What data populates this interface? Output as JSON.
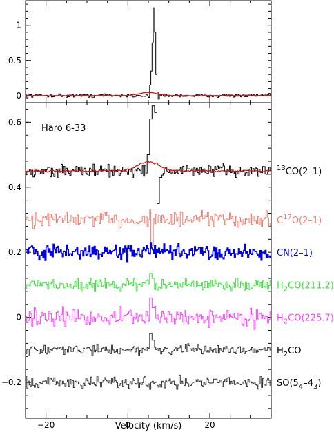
{
  "chart_data": [
    {
      "type": "line",
      "panel": "top",
      "ylim": [
        -0.1,
        1.35
      ],
      "xlim": [
        -25,
        35
      ],
      "yticks": [
        0,
        0.5,
        1
      ],
      "ytick_labels": [
        "0",
        "0.5",
        "1"
      ],
      "series": [
        {
          "color": "#000000",
          "style": "histogram",
          "noise": 0.012,
          "baseline": 0.0,
          "peaks": [
            [
              5.3,
              0.15
            ],
            [
              5.6,
              0.35
            ],
            [
              5.9,
              0.75
            ],
            [
              6.2,
              1.25
            ],
            [
              6.5,
              0.9
            ],
            [
              6.8,
              0.3
            ],
            [
              7.1,
              0.05
            ],
            [
              7.4,
              -0.05
            ]
          ]
        },
        {
          "color": "#ff0000",
          "style": "smooth",
          "baseline": 0.0,
          "gauss": {
            "center": 5.0,
            "amp": 0.045,
            "sigma": 2.2
          }
        }
      ]
    },
    {
      "type": "line",
      "panel": "bottom",
      "ylim": [
        -0.31,
        0.66
      ],
      "xlim": [
        -25,
        35
      ],
      "xlabel": "Velocity (km/s)",
      "xticks": [
        -20,
        0,
        20
      ],
      "xtick_labels": [
        "−20",
        "0",
        "20"
      ],
      "yticks": [
        -0.2,
        0,
        0.2,
        0.4,
        0.6
      ],
      "ytick_labels": [
        "−0.2",
        "0",
        "0.2",
        "0.4",
        "0.6"
      ],
      "annotation": "Haro 6-33",
      "series": [
        {
          "name_html": "<tspan font-size='10' dy='-6'>13</tspan><tspan dy='6'>CO(2–1)</tspan>",
          "color": "#000000",
          "style": "histogram",
          "baseline": 0.45,
          "noise": 0.01,
          "peaks": [
            [
              4.8,
              0.05
            ],
            [
              5.4,
              0.16
            ],
            [
              6.0,
              0.2
            ],
            [
              6.6,
              0.18
            ],
            [
              7.2,
              -0.1
            ],
            [
              7.8,
              -0.02
            ]
          ]
        },
        {
          "color": "#ff0000",
          "style": "smooth",
          "baseline": 0.45,
          "gauss": {
            "center": 5.0,
            "amp": 0.028,
            "sigma": 2.6
          }
        },
        {
          "name_html": "<tspan>C</tspan><tspan font-size='10' dy='-6'>17</tspan><tspan dy='6'>O(2–1)</tspan>",
          "color": "#f08070",
          "style": "histogram",
          "baseline": 0.3,
          "noise": 0.012,
          "peaks": [
            [
              5.4,
              0.03
            ],
            [
              5.7,
              -0.08
            ]
          ]
        },
        {
          "name_html": "<tspan>CN(2–1)</tspan>",
          "color": "#0000e6",
          "style": "histogram",
          "baseline": 0.2,
          "noise": 0.011,
          "dense": true,
          "peaks": [
            [
              4.5,
              0.02
            ],
            [
              5.5,
              0.03
            ],
            [
              6.5,
              0.02
            ]
          ]
        },
        {
          "name_html": "<tspan>H</tspan><tspan font-size='10' dy='4'>2</tspan><tspan dy='-4'>CO(211.2)</tspan>",
          "color": "#40e040",
          "style": "histogram",
          "baseline": 0.1,
          "noise": 0.009,
          "peaks": [
            [
              5.4,
              0.035
            ],
            [
              6.0,
              0.02
            ]
          ]
        },
        {
          "name_html": "<tspan>H</tspan><tspan font-size='10' dy='4'>2</tspan><tspan dy='-4'>CO(225.7)</tspan>",
          "color": "#ff40ff",
          "style": "histogram",
          "baseline": 0.0,
          "noise": 0.013,
          "peaks": [
            [
              5.5,
              0.06
            ],
            [
              6.0,
              0.03
            ]
          ]
        },
        {
          "name_html": "<tspan>H</tspan><tspan font-size='10' dy='4'>2</tspan><tspan dy='-4'>CO</tspan>",
          "color": "#333333",
          "style": "histogram",
          "baseline": -0.1,
          "noise": 0.007,
          "peaks": [
            [
              5.4,
              0.05
            ],
            [
              6.0,
              0.03
            ]
          ]
        },
        {
          "name_html": "<tspan>SO(5</tspan><tspan font-size='10' dy='4'>4</tspan><tspan dy='-4'>–4</tspan><tspan font-size='10' dy='4'>3</tspan><tspan dy='-4'>)</tspan>",
          "color": "#333333",
          "style": "histogram",
          "baseline": -0.2,
          "noise": 0.009,
          "peaks": []
        }
      ]
    }
  ]
}
